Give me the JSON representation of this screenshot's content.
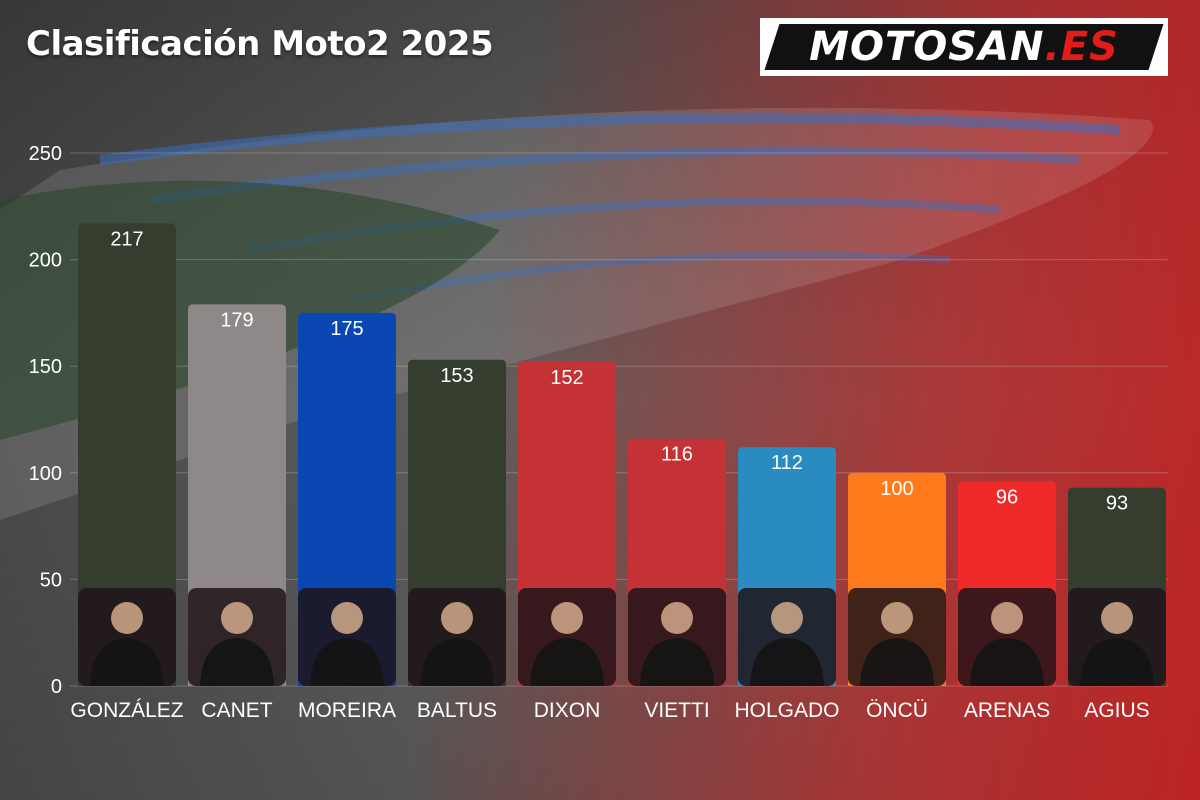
{
  "header": {
    "title": "Clasificación Moto2 2025",
    "logo_main": "MOTOSAN",
    "logo_suffix": ".ES"
  },
  "colors": {
    "accent": "#e21b1b"
  },
  "chart_data": {
    "type": "bar",
    "title": "Clasificación Moto2 2025",
    "categories": [
      "GONZÁLEZ",
      "CANET",
      "MOREIRA",
      "BALTUS",
      "DIXON",
      "VIETTI",
      "HOLGADO",
      "ÖNCÜ",
      "ARENAS",
      "AGIUS"
    ],
    "values": [
      217,
      179,
      175,
      153,
      152,
      116,
      112,
      100,
      96,
      93
    ],
    "bar_colors": [
      "#353e2e",
      "#8e8888",
      "#0a47b3",
      "#353e2e",
      "#c43235",
      "#c43235",
      "#2a8bc0",
      "#ff7a1a",
      "#f02a2a",
      "#353e2e"
    ],
    "ylim": [
      0,
      250
    ],
    "yticks": [
      0,
      50,
      100,
      150,
      200,
      250
    ],
    "xlabel": "",
    "ylabel": "",
    "grid": true,
    "legend": "none"
  }
}
